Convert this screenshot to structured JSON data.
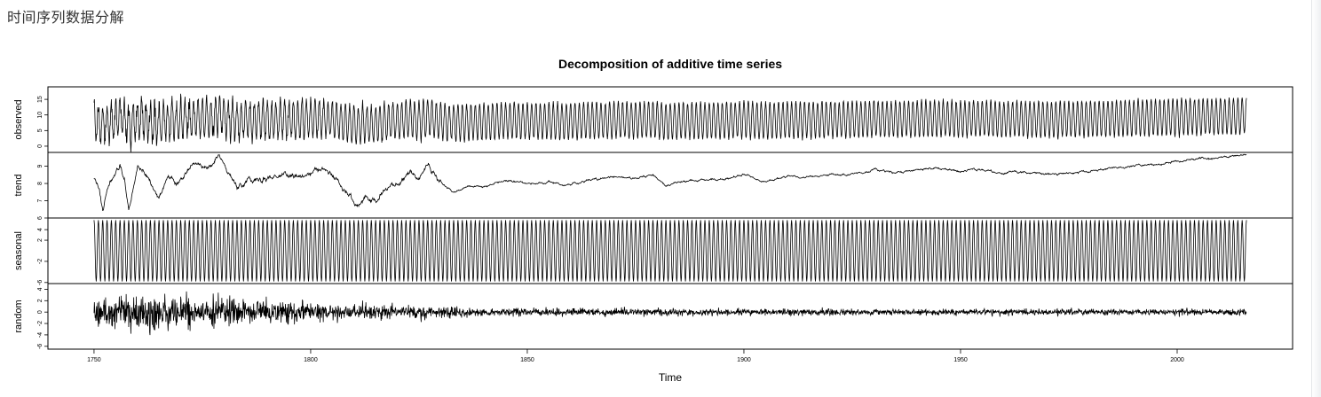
{
  "page": {
    "title": "时间序列数据分解"
  },
  "chart_data": {
    "type": "line",
    "title": "Decomposition of additive time series",
    "xlabel": "Time",
    "xlim": [
      1750,
      2016
    ],
    "x_ticks": [
      1750,
      1800,
      1850,
      1900,
      1950,
      2000
    ],
    "frequency": 12,
    "panels": [
      {
        "name": "observed",
        "ylim": [
          -2,
          19
        ],
        "y_ticks": [
          0,
          5,
          10,
          15
        ],
        "components": [
          "trend",
          "seasonal",
          "random"
        ]
      },
      {
        "name": "trend",
        "ylim": [
          6,
          9.8
        ],
        "y_ticks": [
          6,
          7,
          8,
          9
        ],
        "knots": [
          [
            1750,
            8.3
          ],
          [
            1751,
            7.9
          ],
          [
            1752,
            6.4
          ],
          [
            1753,
            7.8
          ],
          [
            1755,
            8.6
          ],
          [
            1756,
            9.1
          ],
          [
            1757,
            8.2
          ],
          [
            1758,
            6.6
          ],
          [
            1760,
            8.9
          ],
          [
            1762,
            8.4
          ],
          [
            1764,
            7.6
          ],
          [
            1765,
            7.2
          ],
          [
            1767,
            8.4
          ],
          [
            1769,
            7.8
          ],
          [
            1771,
            8.6
          ],
          [
            1773,
            9.3
          ],
          [
            1775,
            8.9
          ],
          [
            1777,
            9.1
          ],
          [
            1779,
            9.6
          ],
          [
            1781,
            8.6
          ],
          [
            1783,
            7.8
          ],
          [
            1786,
            8.2
          ],
          [
            1790,
            8.3
          ],
          [
            1795,
            8.5
          ],
          [
            1800,
            8.6
          ],
          [
            1803,
            8.9
          ],
          [
            1806,
            8.2
          ],
          [
            1809,
            7.2
          ],
          [
            1811,
            6.8
          ],
          [
            1813,
            7.4
          ],
          [
            1815,
            6.9
          ],
          [
            1817,
            7.7
          ],
          [
            1820,
            7.9
          ],
          [
            1823,
            8.7
          ],
          [
            1825,
            8.3
          ],
          [
            1827,
            9.0
          ],
          [
            1830,
            8.0
          ],
          [
            1833,
            7.5
          ],
          [
            1836,
            7.8
          ],
          [
            1840,
            7.8
          ],
          [
            1845,
            8.2
          ],
          [
            1850,
            8.0
          ],
          [
            1855,
            8.1
          ],
          [
            1860,
            7.9
          ],
          [
            1865,
            8.2
          ],
          [
            1870,
            8.4
          ],
          [
            1875,
            8.3
          ],
          [
            1879,
            8.5
          ],
          [
            1882,
            7.8
          ],
          [
            1885,
            8.1
          ],
          [
            1890,
            8.2
          ],
          [
            1895,
            8.2
          ],
          [
            1900,
            8.5
          ],
          [
            1905,
            8.1
          ],
          [
            1910,
            8.4
          ],
          [
            1915,
            8.4
          ],
          [
            1920,
            8.5
          ],
          [
            1925,
            8.5
          ],
          [
            1930,
            8.8
          ],
          [
            1935,
            8.6
          ],
          [
            1940,
            8.8
          ],
          [
            1945,
            8.9
          ],
          [
            1950,
            8.7
          ],
          [
            1955,
            8.8
          ],
          [
            1960,
            8.6
          ],
          [
            1965,
            8.7
          ],
          [
            1970,
            8.5
          ],
          [
            1975,
            8.6
          ],
          [
            1980,
            8.7
          ],
          [
            1985,
            8.9
          ],
          [
            1990,
            9.0
          ],
          [
            1995,
            9.1
          ],
          [
            2000,
            9.3
          ],
          [
            2005,
            9.4
          ],
          [
            2010,
            9.5
          ],
          [
            2016,
            9.7
          ]
        ]
      },
      {
        "name": "seasonal",
        "ylim": [
          -6.2,
          6.2
        ],
        "y_ticks": [
          -6,
          -2,
          2,
          4
        ],
        "amplitude": 5.8
      },
      {
        "name": "random",
        "ylim": [
          -6.5,
          5
        ],
        "y_ticks": [
          -6,
          -4,
          -2,
          0,
          2,
          4
        ],
        "amplitude_by_year": [
          [
            1750,
            2.3
          ],
          [
            1780,
            2.1
          ],
          [
            1800,
            1.3
          ],
          [
            1820,
            1.0
          ],
          [
            1840,
            0.55
          ],
          [
            1900,
            0.42
          ],
          [
            2016,
            0.4
          ]
        ]
      }
    ]
  }
}
